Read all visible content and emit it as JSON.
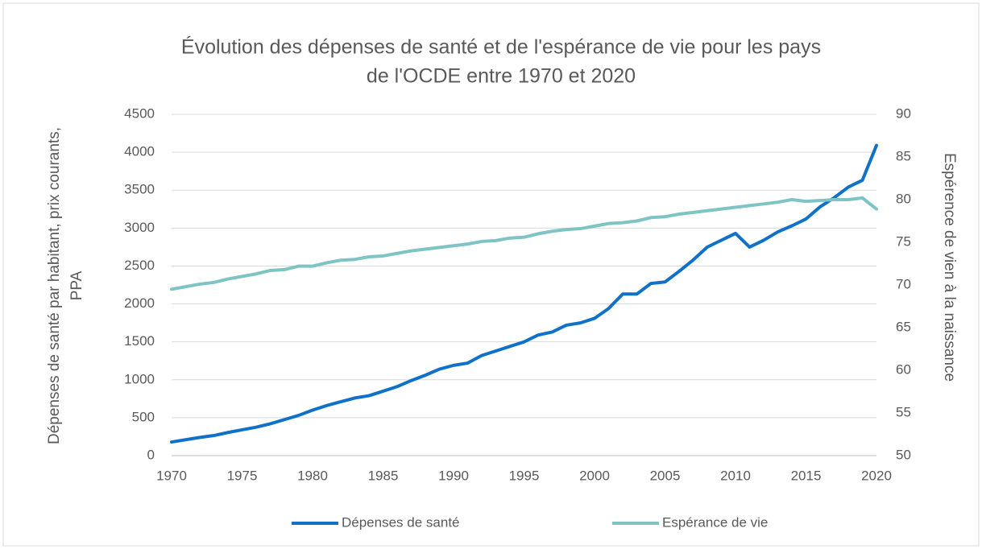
{
  "chart_data": {
    "type": "line",
    "title": [
      "Évolution des dépenses de santé et de l'espérance de vie pour les pays",
      "de l'OCDE entre 1970 et 2020"
    ],
    "ylabel": [
      "Dépenses  de santé par habitant, prix courants,",
      "PPA"
    ],
    "y2label": "Espérence de vien à la naissance",
    "x": [
      1970,
      1971,
      1972,
      1973,
      1974,
      1975,
      1976,
      1977,
      1978,
      1979,
      1980,
      1981,
      1982,
      1983,
      1984,
      1985,
      1986,
      1987,
      1988,
      1989,
      1990,
      1991,
      1992,
      1993,
      1994,
      1995,
      1996,
      1997,
      1998,
      1999,
      2000,
      2001,
      2002,
      2003,
      2004,
      2005,
      2006,
      2007,
      2008,
      2009,
      2010,
      2011,
      2012,
      2013,
      2014,
      2015,
      2016,
      2017,
      2018,
      2019,
      2020
    ],
    "series": [
      {
        "name": "Dépenses de santé",
        "color": "#0f72c8",
        "values": [
          180,
          210,
          240,
          265,
          305,
          340,
          375,
          420,
          475,
          530,
          600,
          660,
          710,
          760,
          790,
          850,
          910,
          990,
          1060,
          1140,
          1190,
          1220,
          1320,
          1380,
          1440,
          1500,
          1590,
          1630,
          1720,
          1750,
          1810,
          1940,
          2130,
          2130,
          2270,
          2290,
          2430,
          2580,
          2750,
          2840,
          2930,
          2750,
          2840,
          2950,
          3030,
          3120,
          3280,
          3400,
          3540,
          3630,
          4090
        ]
      },
      {
        "name": "Espérance de vie",
        "color": "#7fc4c4",
        "axis": "y2",
        "values": [
          69.5,
          69.8,
          70.1,
          70.3,
          70.7,
          71.0,
          71.3,
          71.7,
          71.8,
          72.2,
          72.2,
          72.6,
          72.9,
          73.0,
          73.3,
          73.4,
          73.7,
          74.0,
          74.2,
          74.4,
          74.6,
          74.8,
          75.1,
          75.2,
          75.5,
          75.6,
          76.0,
          76.3,
          76.5,
          76.6,
          76.9,
          77.2,
          77.3,
          77.5,
          77.9,
          78.0,
          78.3,
          78.5,
          78.7,
          78.9,
          79.1,
          79.3,
          79.5,
          79.7,
          80.0,
          79.8,
          79.9,
          80.0,
          80.0,
          80.2,
          78.9
        ]
      }
    ],
    "xlim": [
      1970,
      2020
    ],
    "xticks": [
      1970,
      1975,
      1980,
      1985,
      1990,
      1995,
      2000,
      2005,
      2010,
      2015,
      2020
    ],
    "ylim": [
      0,
      4500
    ],
    "yticks": [
      0,
      500,
      1000,
      1500,
      2000,
      2500,
      3000,
      3500,
      4000,
      4500
    ],
    "y2lim": [
      50,
      90
    ],
    "y2ticks": [
      50,
      55,
      60,
      65,
      70,
      75,
      80,
      85,
      90
    ],
    "grid": true,
    "legend": "bottom"
  }
}
